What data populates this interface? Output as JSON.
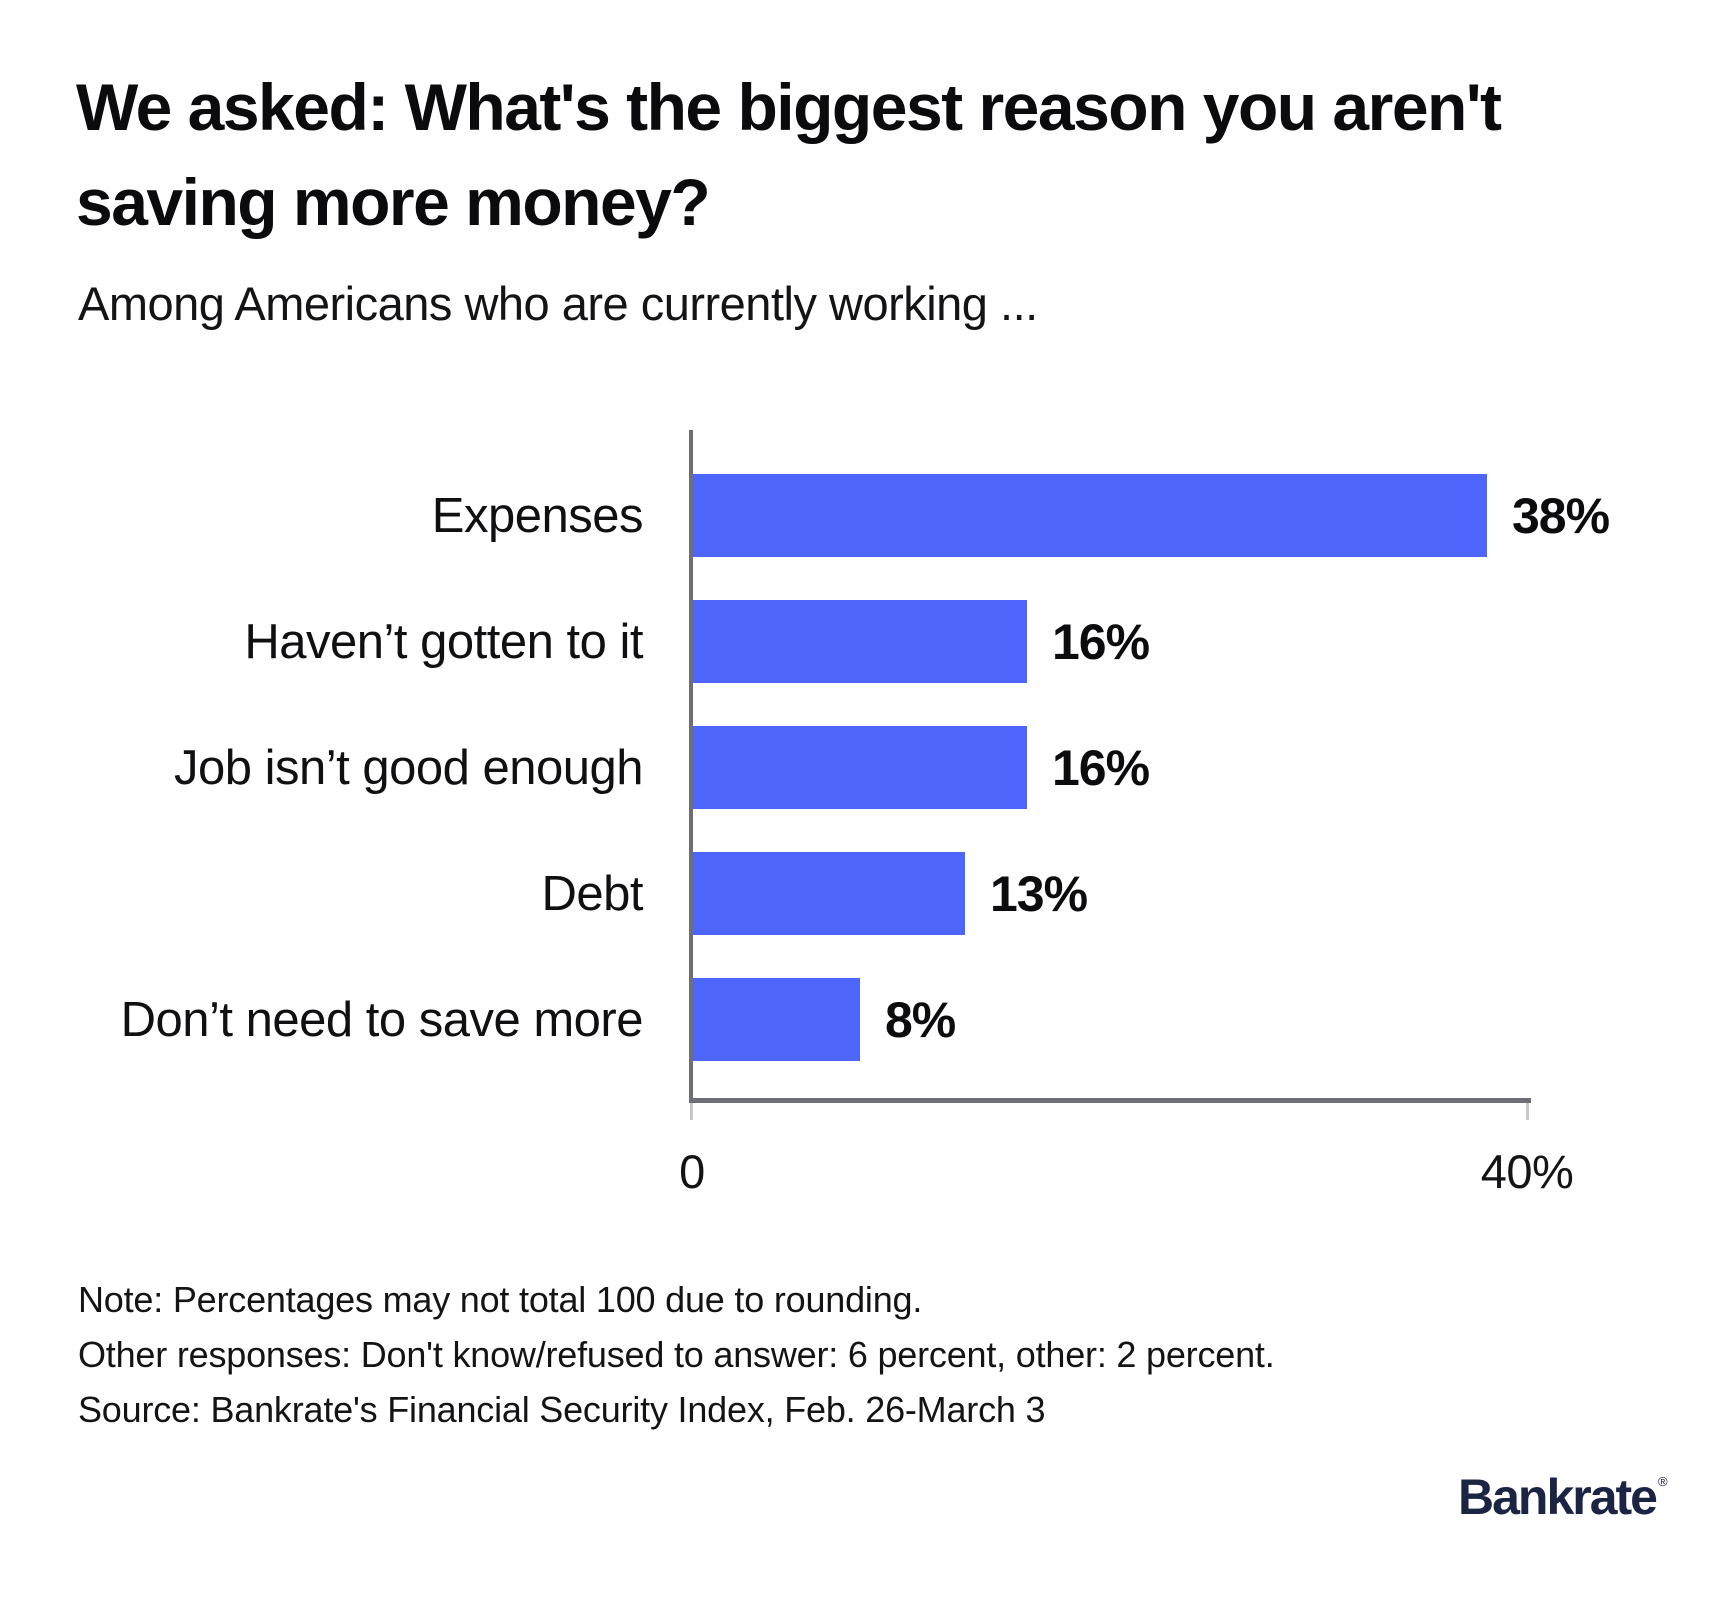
{
  "header": {
    "title_line1": "We asked: What's the biggest reason you aren't",
    "title_line2": "saving more money?",
    "subtitle": "Among Americans who are currently working ..."
  },
  "chart_data": {
    "type": "bar",
    "orientation": "horizontal",
    "title": "We asked: What's the biggest reason you aren't saving more money?",
    "subtitle": "Among Americans who are currently working ...",
    "categories": [
      "Expenses",
      "Haven’t gotten to it",
      "Job isn’t good enough",
      "Debt",
      "Don’t need to save more"
    ],
    "values": [
      38,
      16,
      16,
      13,
      8
    ],
    "value_labels": [
      "38%",
      "16%",
      "16%",
      "13%",
      "8%"
    ],
    "xlabel": "",
    "ylabel": "",
    "xlim": [
      0,
      40
    ],
    "x_ticks": [
      "0",
      "40%"
    ],
    "grid": false,
    "legend": "none",
    "bar_color": "#4d65fb",
    "axis_color": "#6e6e77",
    "tick_color": "#c6c6cb"
  },
  "notes": {
    "line1": "Note: Percentages may not total 100 due to rounding.",
    "line2": "Other responses: Don't know/refused to answer: 6 percent, other: 2 percent.",
    "line3": "Source: Bankrate's Financial Security Index, Feb. 26-March 3"
  },
  "footer": {
    "logo_text": "Bankrate",
    "logo_reg_mark": "®",
    "logo_color": "#1c2444"
  }
}
